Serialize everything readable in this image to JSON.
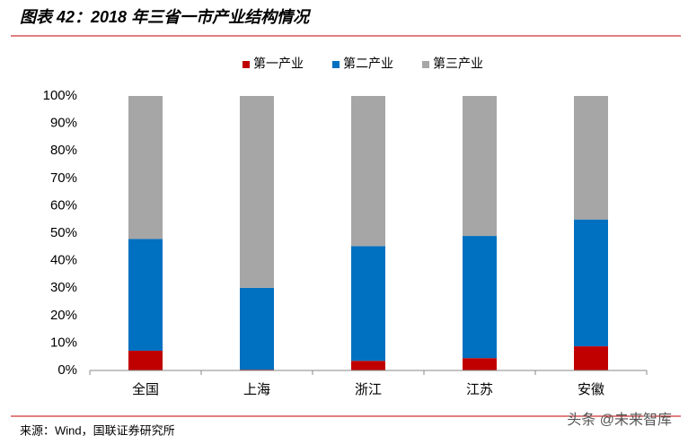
{
  "chart_data": {
    "type": "stacked_bar",
    "title": "图表 42：2018 年三省一市产业结构情况",
    "source": "来源：Wind，国联证券研究所",
    "watermark": "头条 @未来智库",
    "categories": [
      "全国",
      "上海",
      "浙江",
      "江苏",
      "安徽"
    ],
    "series": [
      {
        "name": "第一产业",
        "color": "#c00000",
        "values": [
          7.2,
          0.3,
          3.5,
          4.5,
          8.8
        ]
      },
      {
        "name": "第二产业",
        "color": "#0070c0",
        "values": [
          40.7,
          29.8,
          41.8,
          44.5,
          46.2
        ]
      },
      {
        "name": "第三产业",
        "color": "#a6a6a6",
        "values": [
          52.1,
          69.9,
          54.7,
          51.0,
          45.0
        ]
      }
    ],
    "ylim": [
      0,
      100
    ],
    "yticks": [
      {
        "value": 0,
        "label": "0%"
      },
      {
        "value": 10,
        "label": "10%"
      },
      {
        "value": 20,
        "label": "20%"
      },
      {
        "value": 30,
        "label": "30%"
      },
      {
        "value": 40,
        "label": "40%"
      },
      {
        "value": 50,
        "label": "50%"
      },
      {
        "value": 60,
        "label": "60%"
      },
      {
        "value": 70,
        "label": "70%"
      },
      {
        "value": 80,
        "label": "80%"
      },
      {
        "value": 90,
        "label": "90%"
      },
      {
        "value": 100,
        "label": "100%"
      }
    ],
    "legend": "top"
  }
}
